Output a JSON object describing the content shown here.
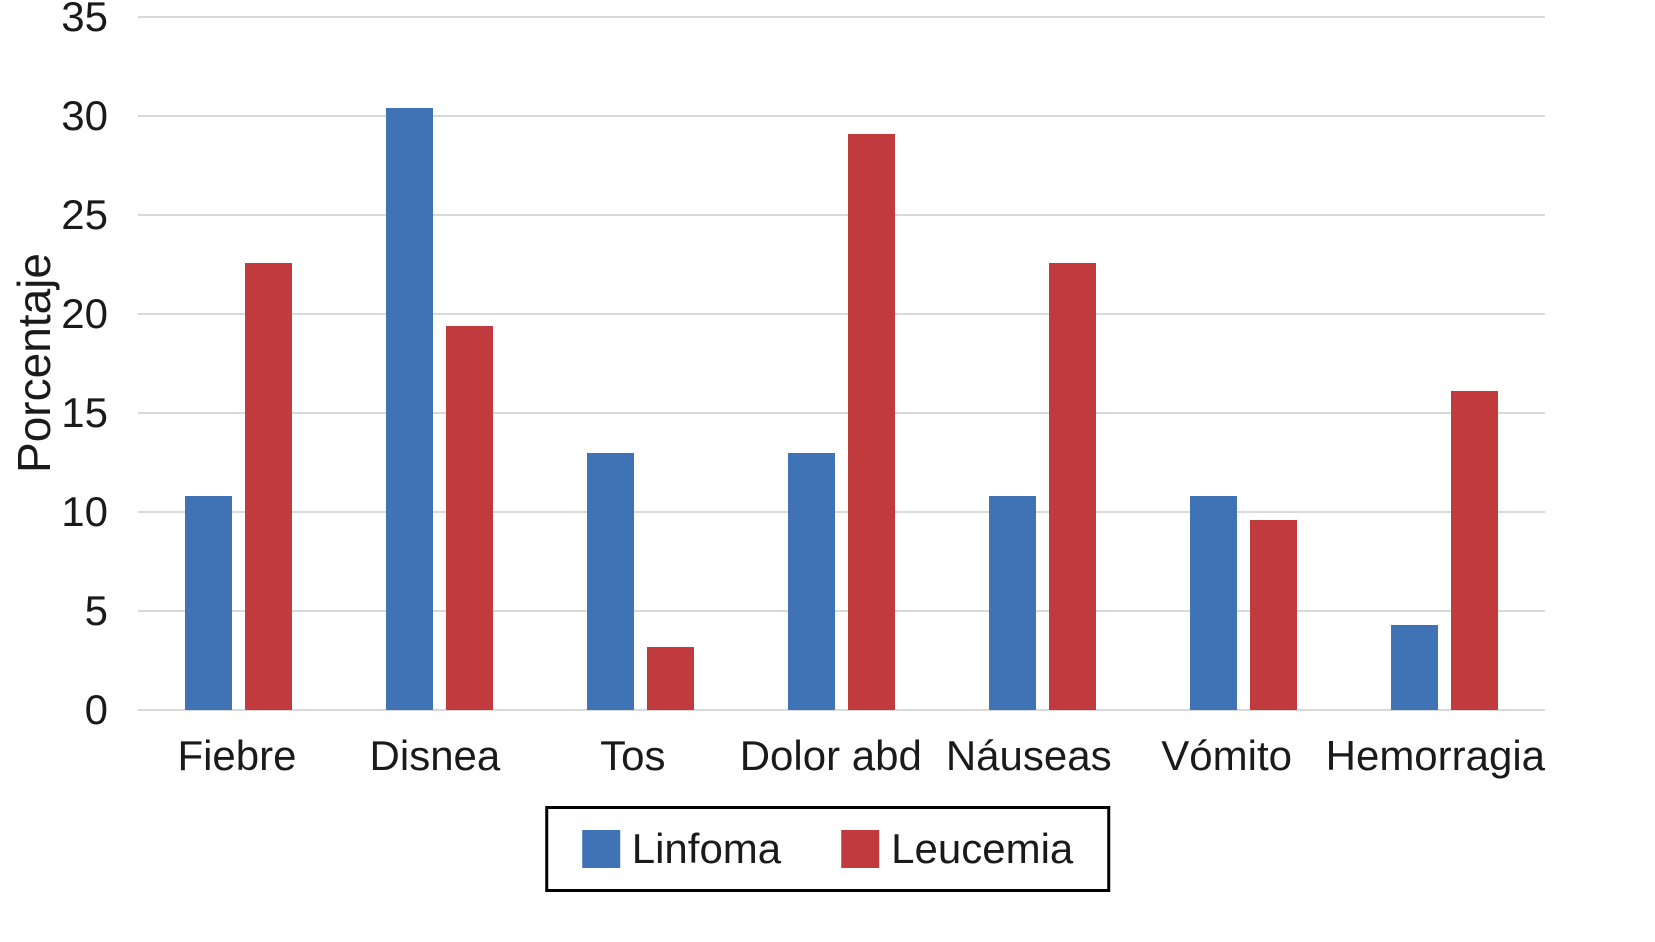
{
  "chart_data": {
    "type": "bar",
    "title": "",
    "xlabel": "",
    "ylabel": "Porcentaje",
    "ylim": [
      0,
      35
    ],
    "yticks": [
      0,
      5,
      10,
      15,
      20,
      25,
      30,
      35
    ],
    "grid": true,
    "legend_position": "bottom",
    "categories": [
      "Fiebre",
      "Disnea",
      "Tos",
      "Dolor abd",
      "Náuseas",
      "Vómito",
      "Hemorragia"
    ],
    "series": [
      {
        "name": "Linfoma",
        "color": "#3f73b5",
        "values": [
          10.8,
          30.4,
          13.0,
          13.0,
          10.8,
          10.8,
          4.3
        ]
      },
      {
        "name": "Leucemia",
        "color": "#c13a3d",
        "values": [
          22.6,
          19.4,
          3.2,
          29.1,
          22.6,
          9.6,
          16.1
        ]
      }
    ]
  },
  "colors": {
    "background": "#ffffff",
    "gridline": "#d9d9d9",
    "axis_text": "#1a1a1a",
    "legend_border": "#000000"
  }
}
